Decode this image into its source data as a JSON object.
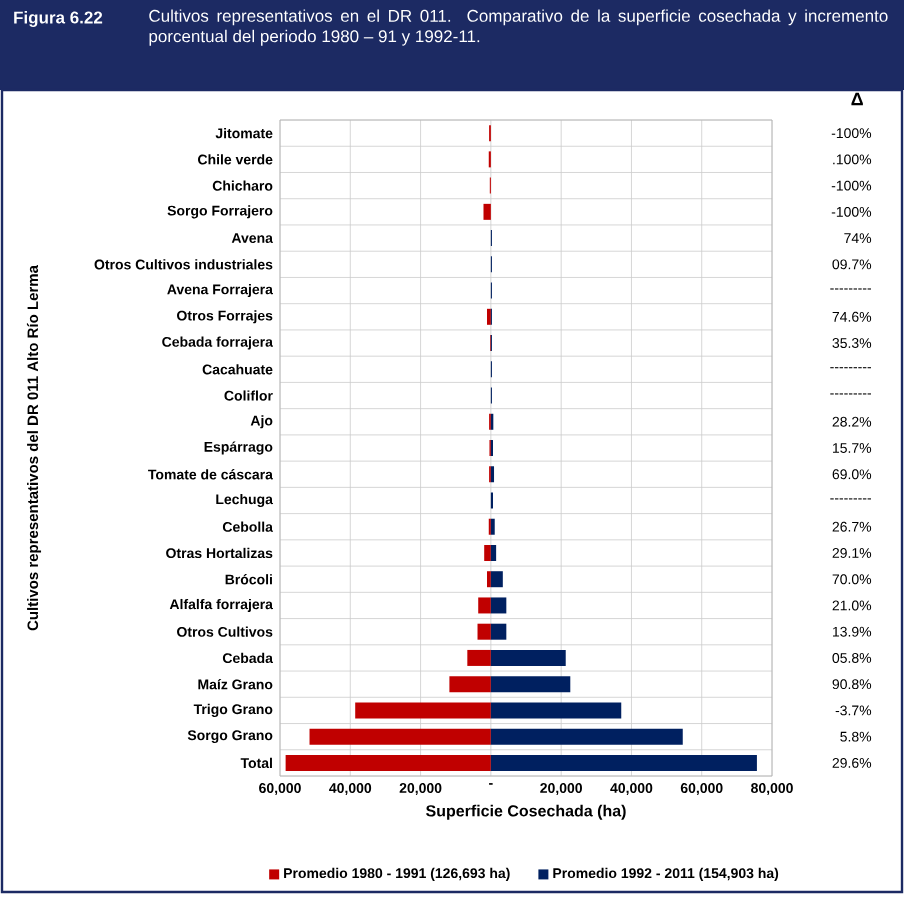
{
  "chart_data": {
    "type": "bar",
    "orientation": "horizontal",
    "title": "Figura 6.22",
    "subtitle": "Cultivos representativos en el DR 011. Comparativo de la superficie cosechada y incremento porcentual del periodo 1980 – 91 y 1992-11.",
    "xlabel": "Superficie Cosechada (ha)",
    "ylabel": "Cultivos representativos del DR 011 Alto Río Lerma",
    "categories": [
      "Jitomate",
      "Chile verde",
      "Chicharo",
      "Sorgo Forrajero",
      "Avena",
      "Otros Cultivos industriales",
      "Avena Forrajera",
      "Otros Forrajes",
      "Cebada forrajera",
      "Cacahuate",
      "Coliflor",
      "Ajo",
      "Espárrago",
      "Tomate de cáscara",
      "Lechuga",
      "Cebolla",
      "Otras Hortalizas",
      "Brócoli",
      "Alfalfa forrajera",
      "Otros Cultivos",
      "Cebada",
      "Maíz Grano",
      "Trigo Grano",
      "Sorgo Grano",
      "Total"
    ],
    "series": [
      {
        "name": "Promedio 1980 - 1991 (126,693 ha)",
        "color": "#c00000",
        "values": [
          -500,
          -600,
          -300,
          -2100,
          0,
          null,
          0,
          -1100,
          -200,
          0,
          0,
          -500,
          -400,
          -500,
          0,
          -600,
          -1900,
          -1100,
          -3600,
          -3800,
          -6700,
          -11800,
          -38600,
          -51600,
          -58400
        ]
      },
      {
        "name": "Promedio 1992 - 2011 (154,903 ha)",
        "color": "#002060",
        "values": [
          0,
          0,
          0,
          0,
          300,
          300,
          300,
          300,
          300,
          300,
          300,
          700,
          600,
          900,
          600,
          1100,
          1500,
          3400,
          4400,
          4400,
          21300,
          22600,
          37100,
          54600,
          75700
        ]
      }
    ],
    "xlim": [
      -60000,
      80000
    ],
    "xticks": [
      {
        "value": -60000,
        "label": "60,000"
      },
      {
        "value": -40000,
        "label": "40,000"
      },
      {
        "value": -20000,
        "label": "20,000"
      },
      {
        "value": 0,
        "label": "-"
      },
      {
        "value": 20000,
        "label": "20,000"
      },
      {
        "value": 40000,
        "label": "40,000"
      },
      {
        "value": 60000,
        "label": "60,000"
      },
      {
        "value": 80000,
        "label": "80,000"
      }
    ],
    "grid": true,
    "legend": "bottom",
    "annotations": [
      "Δ",
      "-100%",
      ".100%",
      "-100%",
      "-100%",
      "74%",
      "09.7%",
      "---------",
      "74.6%",
      "35.3%",
      "---------",
      "---------",
      "28.2%",
      "15.7%",
      "69.0%",
      "---------",
      "26.7%",
      "29.1%",
      "70.0%",
      "21.0%",
      "13.9%",
      "05.8%",
      "90.8%",
      "-3.7%",
      "5.8%",
      "29.6%"
    ]
  }
}
